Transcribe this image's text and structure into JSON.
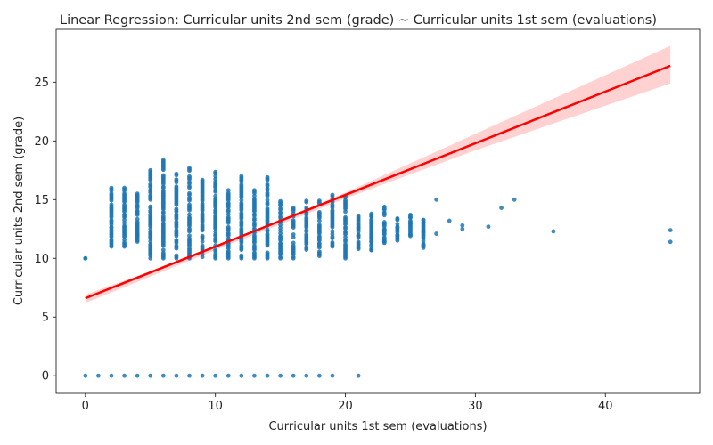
{
  "chart_data": {
    "type": "scatter",
    "title": "Linear Regression: Curricular units 2nd sem (grade) ~ Curricular units 1st sem (evaluations)",
    "xlabel": "Curricular units 1st sem (evaluations)",
    "ylabel": "Curricular units 2nd sem (grade)",
    "xlim": [
      -2.25,
      47.25
    ],
    "ylim": [
      -1.5,
      29.5
    ],
    "x_ticks": [
      0,
      10,
      20,
      30,
      40
    ],
    "y_ticks": [
      0,
      5,
      10,
      15,
      20,
      25
    ],
    "grid": false,
    "colors": {
      "points": "#1f77b4",
      "line": "#ff0000",
      "band": "#ffb3b3"
    },
    "regression": {
      "intercept": 6.6,
      "slope": 0.44,
      "x_range": [
        0,
        45
      ]
    },
    "confidence_band": {
      "x": [
        0,
        10,
        20,
        30,
        45
      ],
      "lower": [
        6.2,
        10.7,
        15.1,
        19.2,
        24.9
      ],
      "upper": [
        6.9,
        10.9,
        15.6,
        20.6,
        28.1
      ]
    },
    "zero_grade_x": [
      0,
      1,
      2,
      3,
      4,
      5,
      6,
      7,
      8,
      9,
      10,
      11,
      12,
      13,
      14,
      15,
      16,
      17,
      18,
      19,
      21
    ],
    "columns": [
      {
        "x": 0,
        "ymin": 10.0,
        "ymax": 10.0
      },
      {
        "x": 2,
        "ymin": 11.0,
        "ymax": 16.0
      },
      {
        "x": 3,
        "ymin": 11.0,
        "ymax": 16.0
      },
      {
        "x": 4,
        "ymin": 11.3,
        "ymax": 15.5
      },
      {
        "x": 5,
        "ymin": 10.0,
        "ymax": 17.5
      },
      {
        "x": 6,
        "ymin": 10.0,
        "ymax": 18.5
      },
      {
        "x": 7,
        "ymin": 10.0,
        "ymax": 17.2
      },
      {
        "x": 8,
        "ymin": 10.0,
        "ymax": 17.7
      },
      {
        "x": 9,
        "ymin": 10.0,
        "ymax": 16.8
      },
      {
        "x": 10,
        "ymin": 10.0,
        "ymax": 17.6
      },
      {
        "x": 11,
        "ymin": 10.0,
        "ymax": 15.8
      },
      {
        "x": 12,
        "ymin": 10.0,
        "ymax": 17.0
      },
      {
        "x": 13,
        "ymin": 10.0,
        "ymax": 15.8
      },
      {
        "x": 14,
        "ymin": 10.0,
        "ymax": 16.9
      },
      {
        "x": 15,
        "ymin": 10.0,
        "ymax": 15.1
      },
      {
        "x": 16,
        "ymin": 10.0,
        "ymax": 14.3
      },
      {
        "x": 17,
        "ymin": 10.5,
        "ymax": 14.9
      },
      {
        "x": 18,
        "ymin": 10.2,
        "ymax": 14.9
      },
      {
        "x": 19,
        "ymin": 11.0,
        "ymax": 15.4
      },
      {
        "x": 20,
        "ymin": 10.0,
        "ymax": 15.3
      },
      {
        "x": 21,
        "ymin": 10.8,
        "ymax": 13.6
      },
      {
        "x": 22,
        "ymin": 10.7,
        "ymax": 13.8
      },
      {
        "x": 23,
        "ymin": 11.2,
        "ymax": 14.5
      },
      {
        "x": 24,
        "ymin": 11.4,
        "ymax": 13.4
      },
      {
        "x": 25,
        "ymin": 11.9,
        "ymax": 13.7
      },
      {
        "x": 26,
        "ymin": 10.9,
        "ymax": 13.4
      }
    ],
    "sparse_points": [
      {
        "x": 27,
        "y": 15.0
      },
      {
        "x": 27,
        "y": 12.1
      },
      {
        "x": 28,
        "y": 13.2
      },
      {
        "x": 29,
        "y": 12.8
      },
      {
        "x": 29,
        "y": 12.5
      },
      {
        "x": 31,
        "y": 12.7
      },
      {
        "x": 32,
        "y": 14.3
      },
      {
        "x": 33,
        "y": 15.0
      },
      {
        "x": 36,
        "y": 12.3
      },
      {
        "x": 45,
        "y": 12.4
      },
      {
        "x": 45,
        "y": 11.4
      },
      {
        "x": 2,
        "y": 12.6
      },
      {
        "x": 2,
        "y": 12.9
      },
      {
        "x": 4,
        "y": 12.0
      },
      {
        "x": 4,
        "y": 12.5
      }
    ]
  }
}
